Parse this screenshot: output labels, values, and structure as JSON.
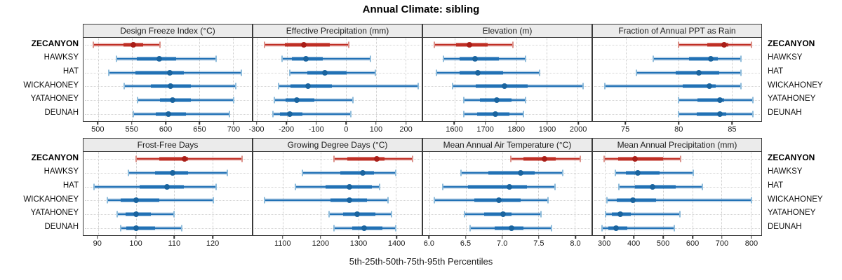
{
  "title": "Annual Climate: sibling",
  "caption": "5th-25th-50th-75th-95th Percentiles",
  "stations": [
    "ZECANYON",
    "HAWKSY",
    "HAT",
    "WICKAHONEY",
    "YATAHONEY",
    "DEUNAH"
  ],
  "highlight_station": "ZECANYON",
  "colors": {
    "blue_main": "#2171b5",
    "blue_dot": "#1a649f",
    "blue_band": "rgba(33,113,181,0.32)",
    "blue_cap": "#8fbcdb",
    "red_main": "#bf2e24",
    "red_dot": "#a91e18",
    "red_band": "rgba(191,46,36,0.30)",
    "red_cap": "#db9189",
    "panel_border": "#3a3a3a",
    "header_bg": "#ebebeb"
  },
  "chart_data": [
    {
      "type": "dotplot-percentile",
      "row": 1,
      "col": 1,
      "title": "Design Freeze Index (°C)",
      "percentiles": [
        5,
        25,
        50,
        75,
        95
      ],
      "xlim": [
        478,
        728
      ],
      "ticks": [
        500,
        550,
        600,
        650,
        700
      ],
      "tick_labels": [
        "500",
        "550",
        "600",
        "650",
        "700"
      ],
      "series": [
        {
          "name": "ZECANYON",
          "values": [
            493,
            537,
            552,
            567,
            592
          ]
        },
        {
          "name": "HAWKSY",
          "values": [
            527,
            557,
            590,
            616,
            675
          ]
        },
        {
          "name": "HAT",
          "values": [
            515,
            555,
            606,
            627,
            712
          ]
        },
        {
          "name": "WICKAHONEY",
          "values": [
            538,
            578,
            607,
            637,
            704
          ]
        },
        {
          "name": "YATAHONEY",
          "values": [
            558,
            592,
            610,
            637,
            701
          ]
        },
        {
          "name": "DEUNAH",
          "values": [
            552,
            585,
            604,
            630,
            695
          ]
        }
      ]
    },
    {
      "type": "dotplot-percentile",
      "row": 1,
      "col": 2,
      "title": "Effective Precipitation (mm)",
      "percentiles": [
        5,
        25,
        50,
        75,
        95
      ],
      "xlim": [
        -313,
        255
      ],
      "ticks": [
        -300,
        -200,
        -100,
        0,
        100,
        200
      ],
      "tick_labels": [
        "-300",
        "-200",
        "-100",
        "0",
        "100",
        "200"
      ],
      "series": [
        {
          "name": "ZECANYON",
          "values": [
            -276,
            -207,
            -142,
            -54,
            8
          ]
        },
        {
          "name": "HAWKSY",
          "values": [
            -217,
            -182,
            -136,
            -79,
            83
          ]
        },
        {
          "name": "HAT",
          "values": [
            -191,
            -130,
            -72,
            2,
            99
          ]
        },
        {
          "name": "WICKAHONEY",
          "values": [
            -227,
            -187,
            -128,
            -47,
            244
          ]
        },
        {
          "name": "YATAHONEY",
          "values": [
            -241,
            -203,
            -167,
            -108,
            22
          ]
        },
        {
          "name": "DEUNAH",
          "values": [
            -247,
            -223,
            -189,
            -148,
            16
          ]
        }
      ]
    },
    {
      "type": "dotplot-percentile",
      "row": 1,
      "col": 3,
      "title": "Elevation (m)",
      "percentiles": [
        5,
        25,
        50,
        75,
        95
      ],
      "xlim": [
        1497,
        2045
      ],
      "ticks": [
        1600,
        1700,
        1800,
        1900,
        2000
      ],
      "tick_labels": [
        "1600",
        "1700",
        "1800",
        "1900",
        "2000"
      ],
      "series": [
        {
          "name": "ZECANYON",
          "values": [
            1534,
            1604,
            1648,
            1706,
            1790
          ]
        },
        {
          "name": "HAWKSY",
          "values": [
            1564,
            1615,
            1666,
            1743,
            1830
          ]
        },
        {
          "name": "HAT",
          "values": [
            1541,
            1615,
            1675,
            1758,
            1875
          ]
        },
        {
          "name": "WICKAHONEY",
          "values": [
            1592,
            1668,
            1762,
            1838,
            2017
          ]
        },
        {
          "name": "YATAHONEY",
          "values": [
            1630,
            1683,
            1736,
            1785,
            1830
          ]
        },
        {
          "name": "DEUNAH",
          "values": [
            1630,
            1672,
            1732,
            1777,
            1823
          ]
        }
      ]
    },
    {
      "type": "dotplot-percentile",
      "row": 1,
      "col": 4,
      "title": "Fraction of Annual PPT as Rain",
      "percentiles": [
        5,
        25,
        50,
        75,
        95
      ],
      "xlim": [
        71.9,
        87.8
      ],
      "ticks": [
        75,
        80,
        85
      ],
      "tick_labels": [
        "75",
        "80",
        "85"
      ],
      "series": [
        {
          "name": "ZECANYON",
          "values": [
            80.0,
            82.7,
            84.3,
            84.7,
            86.9
          ]
        },
        {
          "name": "HAWKSY",
          "values": [
            77.6,
            81.0,
            83.0,
            83.7,
            85.9
          ]
        },
        {
          "name": "HAT",
          "values": [
            76.0,
            79.7,
            81.9,
            83.8,
            85.9
          ]
        },
        {
          "name": "WICKAHONEY",
          "values": [
            73.0,
            80.4,
            82.9,
            83.5,
            85.9
          ]
        },
        {
          "name": "YATAHONEY",
          "values": [
            80.0,
            81.8,
            83.9,
            84.3,
            87.0
          ]
        },
        {
          "name": "DEUNAH",
          "values": [
            80.0,
            81.7,
            83.9,
            84.5,
            87.0
          ]
        }
      ]
    },
    {
      "type": "dotplot-percentile",
      "row": 2,
      "col": 1,
      "title": "Frost-Free Days",
      "percentiles": [
        5,
        25,
        50,
        75,
        95
      ],
      "xlim": [
        86.2,
        130.4
      ],
      "ticks": [
        90,
        100,
        110,
        120
      ],
      "tick_labels": [
        "90",
        "100",
        "110",
        "120"
      ],
      "series": [
        {
          "name": "ZECANYON",
          "values": [
            100,
            106,
            112.7,
            113.7,
            127.8
          ]
        },
        {
          "name": "HAWKSY",
          "values": [
            98,
            105,
            109.6,
            113.6,
            124
          ]
        },
        {
          "name": "HAT",
          "values": [
            89,
            101,
            108.1,
            112.6,
            121
          ]
        },
        {
          "name": "WICKAHONEY",
          "values": [
            92.4,
            96,
            100,
            106,
            120.2
          ]
        },
        {
          "name": "YATAHONEY",
          "values": [
            95,
            97.2,
            100,
            103.8,
            110
          ]
        },
        {
          "name": "DEUNAH",
          "values": [
            96,
            97.5,
            100,
            105,
            112
          ]
        }
      ]
    },
    {
      "type": "dotplot-percentile",
      "row": 2,
      "col": 2,
      "title": "Growing Degree Days (°C)",
      "percentiles": [
        5,
        25,
        50,
        75,
        95
      ],
      "xlim": [
        1021,
        1468
      ],
      "ticks": [
        1100,
        1200,
        1300,
        1400
      ],
      "tick_labels": [
        "1100",
        "1200",
        "1300",
        "1400"
      ],
      "series": [
        {
          "name": "ZECANYON",
          "values": [
            1236,
            1271,
            1348,
            1370,
            1443
          ]
        },
        {
          "name": "HAWKSY",
          "values": [
            1152,
            1252,
            1311,
            1342,
            1399
          ]
        },
        {
          "name": "HAT",
          "values": [
            1133,
            1212,
            1277,
            1335,
            1356
          ]
        },
        {
          "name": "WICKAHONEY",
          "values": [
            1051,
            1225,
            1276,
            1323,
            1378
          ]
        },
        {
          "name": "YATAHONEY",
          "values": [
            1222,
            1259,
            1297,
            1345,
            1388
          ]
        },
        {
          "name": "DEUNAH",
          "values": [
            1235,
            1283,
            1315,
            1364,
            1400
          ]
        }
      ]
    },
    {
      "type": "dotplot-percentile",
      "row": 2,
      "col": 3,
      "title": "Mean Annual Air Temperature (°C)",
      "percentiles": [
        5,
        25,
        50,
        75,
        95
      ],
      "xlim": [
        5.91,
        8.23
      ],
      "ticks": [
        6.0,
        6.5,
        7.0,
        7.5,
        8.0
      ],
      "tick_labels": [
        "6.0",
        "6.5",
        "7.0",
        "7.5",
        "8.0"
      ],
      "series": [
        {
          "name": "ZECANYON",
          "values": [
            7.12,
            7.29,
            7.58,
            7.74,
            8.08
          ]
        },
        {
          "name": "HAWKSY",
          "values": [
            6.43,
            6.81,
            7.25,
            7.45,
            7.83
          ]
        },
        {
          "name": "HAT",
          "values": [
            6.18,
            6.53,
            7.1,
            7.34,
            7.73
          ]
        },
        {
          "name": "WICKAHONEY",
          "values": [
            6.06,
            6.62,
            6.95,
            7.25,
            7.63
          ]
        },
        {
          "name": "YATAHONEY",
          "values": [
            6.48,
            6.75,
            7.01,
            7.13,
            7.53
          ]
        },
        {
          "name": "DEUNAH",
          "values": [
            6.56,
            6.9,
            7.13,
            7.29,
            7.68
          ]
        }
      ]
    },
    {
      "type": "dotplot-percentile",
      "row": 2,
      "col": 4,
      "title": "Mean Annual Precipitation (mm)",
      "percentiles": [
        5,
        25,
        50,
        75,
        95
      ],
      "xlim": [
        259,
        836
      ],
      "ticks": [
        300,
        400,
        500,
        600,
        700,
        800
      ],
      "tick_labels": [
        "300",
        "400",
        "500",
        "600",
        "700",
        "800"
      ],
      "series": [
        {
          "name": "ZECANYON",
          "values": [
            298,
            345,
            404,
            500,
            560
          ]
        },
        {
          "name": "HAWKSY",
          "values": [
            336,
            372,
            414,
            487,
            602
          ]
        },
        {
          "name": "HAT",
          "values": [
            348,
            404,
            463,
            543,
            634
          ]
        },
        {
          "name": "WICKAHONEY",
          "values": [
            307,
            340,
            396,
            475,
            802
          ]
        },
        {
          "name": "YATAHONEY",
          "values": [
            303,
            323,
            353,
            390,
            557
          ]
        },
        {
          "name": "DEUNAH",
          "values": [
            291,
            313,
            339,
            376,
            539
          ]
        }
      ]
    }
  ]
}
